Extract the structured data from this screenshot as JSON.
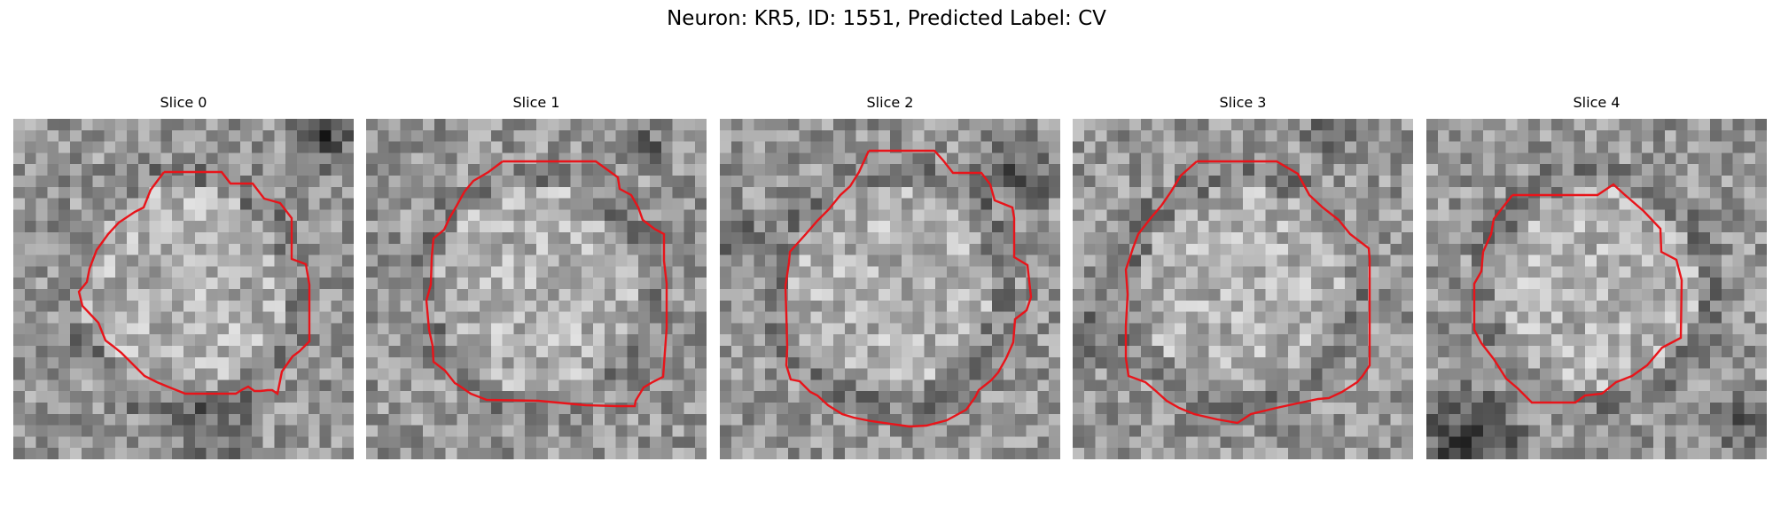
{
  "figure": {
    "title": "Neuron: KR5, ID: 1551, Predicted Label: CV"
  },
  "panels": [
    {
      "title": "Slice 0"
    },
    {
      "title": "Slice 1"
    },
    {
      "title": "Slice 2"
    },
    {
      "title": "Slice 3"
    },
    {
      "title": "Slice 4"
    }
  ],
  "colors": {
    "contour": "#e8141a",
    "background": "#ffffff"
  }
}
